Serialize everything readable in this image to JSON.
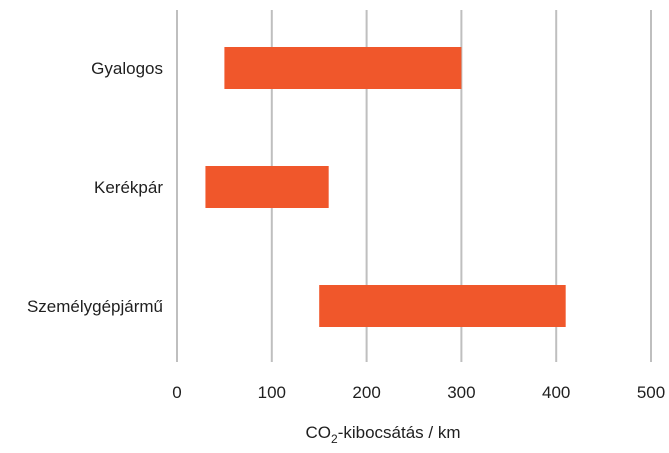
{
  "chart_data": {
    "type": "bar",
    "orientation": "horizontal",
    "subtype": "floating-range",
    "categories": [
      "Gyalogos",
      "Kerékpár",
      "Személygépjármű"
    ],
    "series": [
      {
        "ranges": [
          [
            50,
            300
          ],
          [
            30,
            160
          ],
          [
            150,
            410
          ]
        ]
      }
    ],
    "bar_color": "#f0572b",
    "gridline_color": "#bfbfbf",
    "xlim": [
      0,
      500
    ],
    "xticks": [
      0,
      100,
      200,
      300,
      400,
      500
    ],
    "xlabel": {
      "prefix": "CO",
      "subscript": "2",
      "suffix": "-kibocsátás / km"
    },
    "grid": "vertical",
    "legend": "none"
  }
}
